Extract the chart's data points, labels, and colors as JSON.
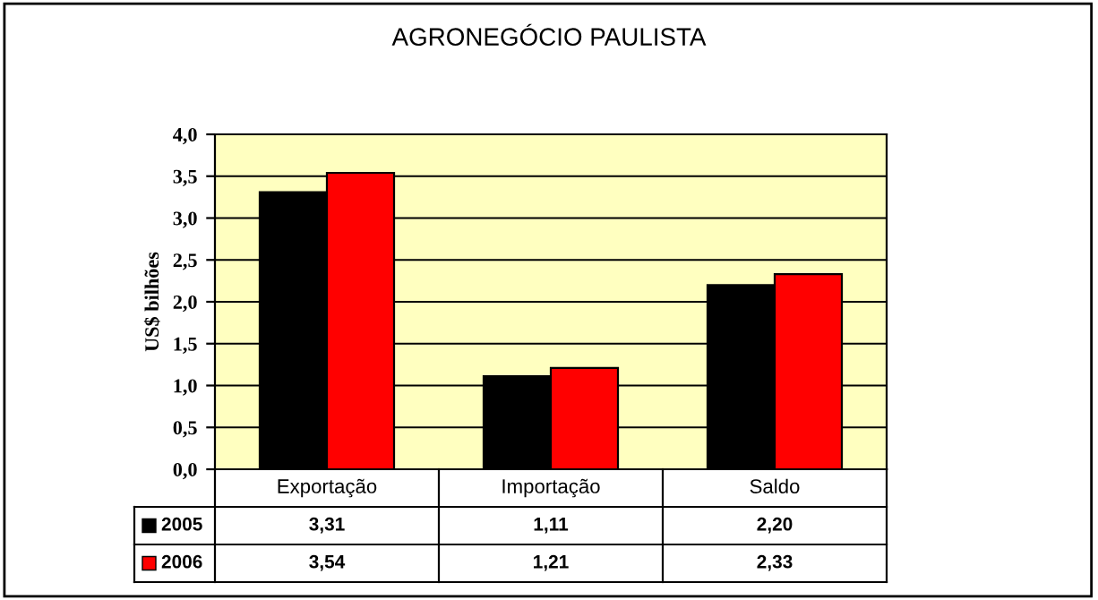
{
  "chart_data": {
    "type": "bar",
    "title": "AGRONEGÓCIO PAULISTA",
    "ylabel": "US$ bilhões",
    "categories": [
      "Exportação",
      "Importação",
      "Saldo"
    ],
    "series": [
      {
        "name": "2005",
        "color": "#000000",
        "values": [
          3.31,
          1.11,
          2.2
        ],
        "value_labels": [
          "3,31",
          "1,11",
          "2,20"
        ]
      },
      {
        "name": "2006",
        "color": "#ff0000",
        "values": [
          3.54,
          1.21,
          2.33
        ],
        "value_labels": [
          "3,54",
          "1,21",
          "2,33"
        ]
      }
    ],
    "ylim": [
      0,
      4
    ],
    "yticks": [
      {
        "value": 0,
        "label": "0,0"
      },
      {
        "value": 0.5,
        "label": "0,5"
      },
      {
        "value": 1,
        "label": "1,0"
      },
      {
        "value": 1.5,
        "label": "1,5"
      },
      {
        "value": 2,
        "label": "2,0"
      },
      {
        "value": 2.5,
        "label": "2,5"
      },
      {
        "value": 3,
        "label": "3,0"
      },
      {
        "value": 3.5,
        "label": "3,5"
      },
      {
        "value": 4,
        "label": "4,0"
      }
    ],
    "grid": "y",
    "legend": "bottom",
    "data_labels": true
  }
}
